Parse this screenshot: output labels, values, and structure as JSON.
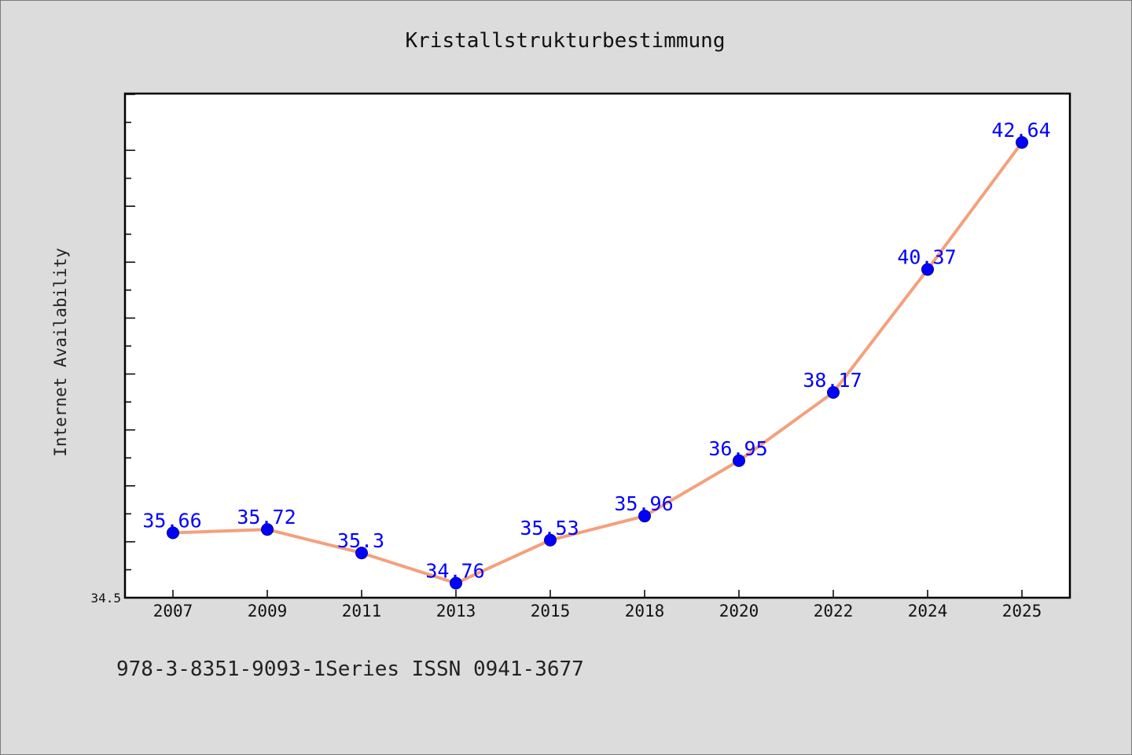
{
  "footer_text": "978-3-8351-9093-1Series ISSN 0941-3677",
  "chart_data": {
    "type": "line",
    "title": "Kristallstrukturbestimmung",
    "xlabel": "",
    "ylabel": "Internet Availability",
    "categories": [
      "2007",
      "2009",
      "2011",
      "2013",
      "2015",
      "2018",
      "2020",
      "2022",
      "2024",
      "2025"
    ],
    "values": [
      35.66,
      35.72,
      35.3,
      34.76,
      35.53,
      35.96,
      36.95,
      38.17,
      40.37,
      42.64
    ],
    "data_labels": [
      "35.66",
      "35.72",
      "35.3",
      "34.76",
      "35.53",
      "35.96",
      "36.95",
      "38.17",
      "40.37",
      "42.64"
    ],
    "ylim": [
      34.5,
      43.5
    ],
    "y_tick_labels": [
      "34.5"
    ],
    "grid": false,
    "line_color": "#f4a07c",
    "marker_color": "#0000ff",
    "label_color": "#0000ff"
  }
}
